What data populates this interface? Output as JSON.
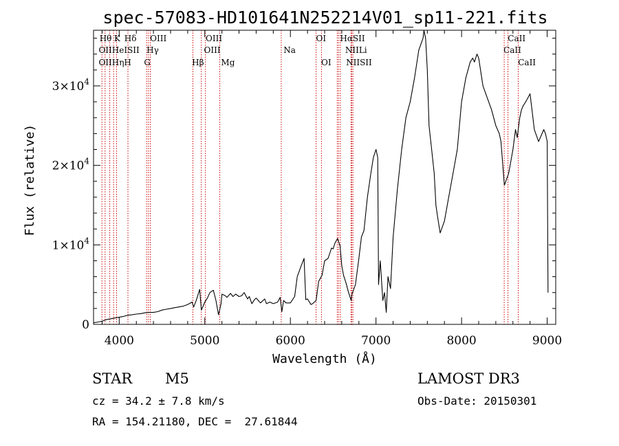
{
  "chart_data": {
    "type": "line",
    "title": "spec-57083-HD101641N252214V01_sp11-221.fits",
    "xlabel": "Wavelength (Å)",
    "ylabel": "Flux (relative)",
    "xlim": [
      3700,
      9100
    ],
    "ylim": [
      0,
      37000
    ],
    "xticks": [
      {
        "value": 4000,
        "label": "4000"
      },
      {
        "value": 5000,
        "label": "5000"
      },
      {
        "value": 6000,
        "label": "6000"
      },
      {
        "value": 7000,
        "label": "7000"
      },
      {
        "value": 8000,
        "label": "8000"
      },
      {
        "value": 9000,
        "label": "9000"
      }
    ],
    "yticks": [
      {
        "value": 0,
        "mant": "0",
        "exp": ""
      },
      {
        "value": 10000,
        "mant": "1×10",
        "exp": "4"
      },
      {
        "value": 20000,
        "mant": "2×10",
        "exp": "4"
      },
      {
        "value": 30000,
        "mant": "3×10",
        "exp": "4"
      }
    ],
    "series": [
      {
        "name": "flux",
        "x": [
          3700,
          3760,
          3800,
          3850,
          3900,
          3950,
          4000,
          4050,
          4100,
          4150,
          4200,
          4250,
          4300,
          4350,
          4400,
          4450,
          4500,
          4550,
          4600,
          4650,
          4700,
          4750,
          4800,
          4850,
          4870,
          4900,
          4940,
          4960,
          5000,
          5030,
          5060,
          5100,
          5130,
          5160,
          5190,
          5200,
          5240,
          5260,
          5300,
          5330,
          5360,
          5400,
          5430,
          5460,
          5500,
          5520,
          5550,
          5580,
          5600,
          5650,
          5680,
          5700,
          5720,
          5760,
          5800,
          5850,
          5880,
          5900,
          5920,
          5950,
          6000,
          6050,
          6080,
          6120,
          6160,
          6180,
          6200,
          6240,
          6260,
          6300,
          6330,
          6370,
          6400,
          6440,
          6480,
          6500,
          6520,
          6550,
          6580,
          6600,
          6620,
          6650,
          6680,
          6710,
          6720,
          6760,
          6800,
          6830,
          6860,
          6900,
          6940,
          6970,
          7000,
          7020,
          7030,
          7050,
          7080,
          7100,
          7120,
          7140,
          7170,
          7200,
          7250,
          7300,
          7350,
          7400,
          7450,
          7500,
          7550,
          7560,
          7580,
          7600,
          7620,
          7650,
          7680,
          7700,
          7720,
          7750,
          7800,
          7850,
          7900,
          7950,
          8000,
          8050,
          8100,
          8130,
          8150,
          8180,
          8200,
          8250,
          8300,
          8350,
          8400,
          8440,
          8460,
          8500,
          8550,
          8600,
          8630,
          8650,
          8680,
          8700,
          8720,
          8750,
          8800,
          8850,
          8900,
          8960,
          8980,
          9000,
          9010
        ],
        "y": [
          200,
          300,
          400,
          600,
          700,
          800,
          900,
          1000,
          1150,
          1200,
          1300,
          1350,
          1450,
          1500,
          1500,
          1600,
          1800,
          1900,
          2000,
          2100,
          2200,
          2300,
          2500,
          2800,
          2200,
          3000,
          4400,
          1800,
          2800,
          3300,
          4000,
          4300,
          3000,
          1200,
          2600,
          3800,
          3600,
          3400,
          3900,
          3500,
          3800,
          3500,
          3600,
          4000,
          3200,
          3500,
          2600,
          3100,
          3300,
          2700,
          3000,
          3200,
          2600,
          2800,
          2600,
          2800,
          3400,
          1600,
          3000,
          2700,
          2700,
          3500,
          6000,
          7200,
          8300,
          3100,
          3200,
          2500,
          2600,
          3000,
          5400,
          6200,
          8000,
          8300,
          9600,
          9500,
          10200,
          10800,
          9900,
          7400,
          6200,
          5200,
          4000,
          3000,
          3800,
          5000,
          8300,
          11000,
          11800,
          16000,
          19000,
          21000,
          22000,
          21000,
          5000,
          8000,
          3000,
          4000,
          1500,
          6000,
          4500,
          11000,
          17000,
          22000,
          26000,
          28000,
          31000,
          34500,
          36000,
          37000,
          36000,
          32000,
          25000,
          22000,
          19000,
          15000,
          13500,
          11500,
          13000,
          16000,
          19000,
          22000,
          28000,
          31000,
          33000,
          33500,
          33000,
          34000,
          33500,
          30000,
          28500,
          27000,
          25000,
          24000,
          23000,
          17500,
          19000,
          22000,
          24500,
          23500,
          26000,
          27000,
          27500,
          28000,
          29000,
          24500,
          23000,
          24500,
          24000,
          23000,
          4000
        ]
      }
    ],
    "lines": [
      {
        "wl": 3798,
        "label": "Hθ",
        "row": 0
      },
      {
        "wl": 3835,
        "label": "",
        "row": 0
      },
      {
        "wl": 3889,
        "label": "",
        "row": 0
      },
      {
        "wl": 3934,
        "label": "K",
        "row": 0
      },
      {
        "wl": 3969,
        "label": "",
        "row": 0
      },
      {
        "wl": 4102,
        "label": "Hδ",
        "row": 0
      },
      {
        "wl": 4320,
        "label": "",
        "row": 0
      },
      {
        "wl": 4341,
        "label": "",
        "row": 0
      },
      {
        "wl": 4363,
        "label": "OIII",
        "row": 0
      },
      {
        "wl": 4861,
        "label": "",
        "row": 0
      },
      {
        "wl": 4959,
        "label": "",
        "row": 0
      },
      {
        "wl": 5007,
        "label": "OIII",
        "row": 0
      },
      {
        "wl": 5175,
        "label": "",
        "row": 0
      },
      {
        "wl": 5893,
        "label": "",
        "row": 0
      },
      {
        "wl": 6300,
        "label": "OI",
        "row": 0
      },
      {
        "wl": 6363,
        "label": "",
        "row": 0
      },
      {
        "wl": 6548,
        "label": "",
        "row": 0
      },
      {
        "wl": 6563,
        "label": "Hα",
        "row": 0
      },
      {
        "wl": 6584,
        "label": "",
        "row": 0
      },
      {
        "wl": 6708,
        "label": "",
        "row": 0
      },
      {
        "wl": 6717,
        "label": "SII",
        "row": 0
      },
      {
        "wl": 6731,
        "label": "",
        "row": 0
      },
      {
        "wl": 8498,
        "label": "",
        "row": 0
      },
      {
        "wl": 8542,
        "label": "CaII",
        "row": 0
      },
      {
        "wl": 8662,
        "label": "",
        "row": 0
      }
    ],
    "labels": [
      {
        "wl": 3770,
        "row": 0,
        "text": "Hθ"
      },
      {
        "wl": 3940,
        "row": 0,
        "text": "K"
      },
      {
        "wl": 4060,
        "row": 0,
        "text": "Hδ"
      },
      {
        "wl": 4360,
        "row": 0,
        "text": "OIII"
      },
      {
        "wl": 5010,
        "row": 0,
        "text": "OIII"
      },
      {
        "wl": 6300,
        "row": 0,
        "text": "OI"
      },
      {
        "wl": 6580,
        "row": 0,
        "text": "HαSII"
      },
      {
        "wl": 8540,
        "row": 0,
        "text": "CaII"
      },
      {
        "wl": 3760,
        "row": 1,
        "text": "OIIHeISII"
      },
      {
        "wl": 4320,
        "row": 1,
        "text": "Hγ"
      },
      {
        "wl": 4990,
        "row": 1,
        "text": "OIII"
      },
      {
        "wl": 5920,
        "row": 1,
        "text": "Na"
      },
      {
        "wl": 6640,
        "row": 1,
        "text": "NIILi"
      },
      {
        "wl": 8490,
        "row": 1,
        "text": "CaII"
      },
      {
        "wl": 3760,
        "row": 2,
        "text": "OIIHηH"
      },
      {
        "wl": 4290,
        "row": 2,
        "text": "G"
      },
      {
        "wl": 4850,
        "row": 2,
        "text": "Hβ"
      },
      {
        "wl": 5190,
        "row": 2,
        "text": "Mg"
      },
      {
        "wl": 6360,
        "row": 2,
        "text": "OI"
      },
      {
        "wl": 6650,
        "row": 2,
        "text": "NIISII"
      },
      {
        "wl": 8660,
        "row": 2,
        "text": "CaII"
      }
    ]
  },
  "info": {
    "object_class": "STAR",
    "subclass": "M5",
    "survey": "LAMOST DR3",
    "redshift": "cz = 34.2 ± 7.8 km/s",
    "obs_date": "Obs-Date: 20150301",
    "coords": "RA = 154.21180, DEC =  27.61844"
  },
  "colors": {
    "line_marker": "#cc0000",
    "spectrum": "#000000"
  }
}
